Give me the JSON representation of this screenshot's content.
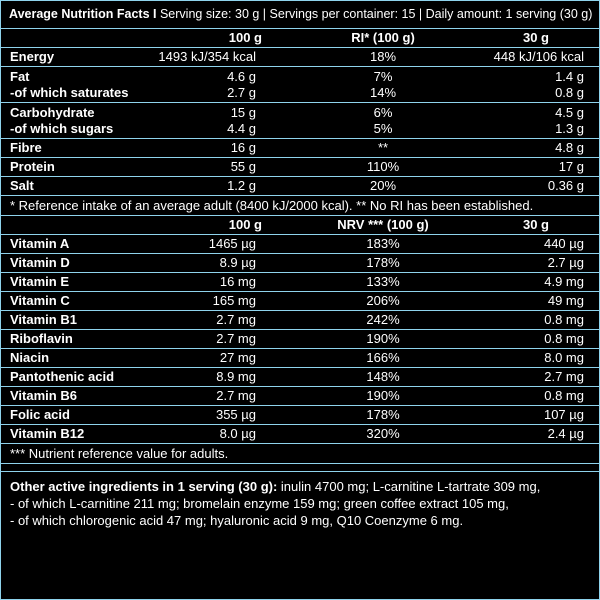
{
  "header": {
    "title": "Average Nutrition Facts I",
    "info": " Serving size: 30 g | Servings per container: 15 | Daily amount: 1 serving (30 g)"
  },
  "nutrition": {
    "columns": [
      "100 g",
      "RI* (100 g)",
      "30 g"
    ],
    "rows": [
      {
        "name": "Energy",
        "a": "1493 kJ/354 kcal",
        "b": "18%",
        "c": "448 kJ/106 kcal"
      },
      {
        "name": "Fat",
        "a": "4.6 g",
        "b": "7%",
        "c": "1.4 g",
        "name2": "-of which saturates",
        "a2": "2.7 g",
        "b2": "14%",
        "c2": "0.8 g"
      },
      {
        "name": "Carbohydrate",
        "a": "15 g",
        "b": "6%",
        "c": "4.5 g",
        "name2": "-of which sugars",
        "a2": "4.4 g",
        "b2": "5%",
        "c2": "1.3 g"
      },
      {
        "name": "Fibre",
        "a": "16 g",
        "b": "**",
        "c": "4.8 g"
      },
      {
        "name": "Protein",
        "a": "55 g",
        "b": "110%",
        "c": "17 g"
      },
      {
        "name": "Salt",
        "a": "1.2 g",
        "b": "20%",
        "c": "0.36 g"
      }
    ],
    "footnote": "* Reference intake of an average adult (8400 kJ/2000 kcal). ** No RI has been established."
  },
  "vitamins": {
    "columns": [
      "100 g",
      "NRV *** (100 g)",
      "30 g"
    ],
    "rows": [
      {
        "name": "Vitamin A",
        "a": "1465 µg",
        "b": "183%",
        "c": "440 µg"
      },
      {
        "name": "Vitamin D",
        "a": "8.9 µg",
        "b": "178%",
        "c": "2.7 µg"
      },
      {
        "name": "Vitamin E",
        "a": "16 mg",
        "b": "133%",
        "c": "4.9 mg"
      },
      {
        "name": "Vitamin C",
        "a": "165 mg",
        "b": "206%",
        "c": "49 mg"
      },
      {
        "name": "Vitamin B1",
        "a": "2.7 mg",
        "b": "242%",
        "c": "0.8 mg"
      },
      {
        "name": "Riboflavin",
        "a": "2.7 mg",
        "b": "190%",
        "c": "0.8 mg"
      },
      {
        "name": "Niacin",
        "a": "27 mg",
        "b": "166%",
        "c": "8.0 mg"
      },
      {
        "name": "Pantothenic acid",
        "a": "8.9 mg",
        "b": "148%",
        "c": "2.7 mg"
      },
      {
        "name": "Vitamin B6",
        "a": "2.7 mg",
        "b": "190%",
        "c": "0.8 mg"
      },
      {
        "name": "Folic acid",
        "a": "355 µg",
        "b": "178%",
        "c": "107 µg"
      },
      {
        "name": "Vitamin B12",
        "a": "8.0 µg",
        "b": "320%",
        "c": "2.4 µg"
      }
    ],
    "footnote": "*** Nutrient reference value for adults."
  },
  "other": {
    "label": "Other active ingredients in 1 serving (30 g):",
    "line1": " inulin 4700 mg; L-carnitine L-tartrate 309 mg,",
    "line2": "- of which L-carnitine 211 mg; bromelain enzyme 159 mg; green coffee extract 105 mg,",
    "line3": "- of which chlorogenic acid 47 mg; hyaluronic acid 9 mg, Q10 Coenzyme 6 mg."
  },
  "colors": {
    "background": "#000000",
    "rule": "#8fd3ec",
    "text": "#ffffff"
  }
}
